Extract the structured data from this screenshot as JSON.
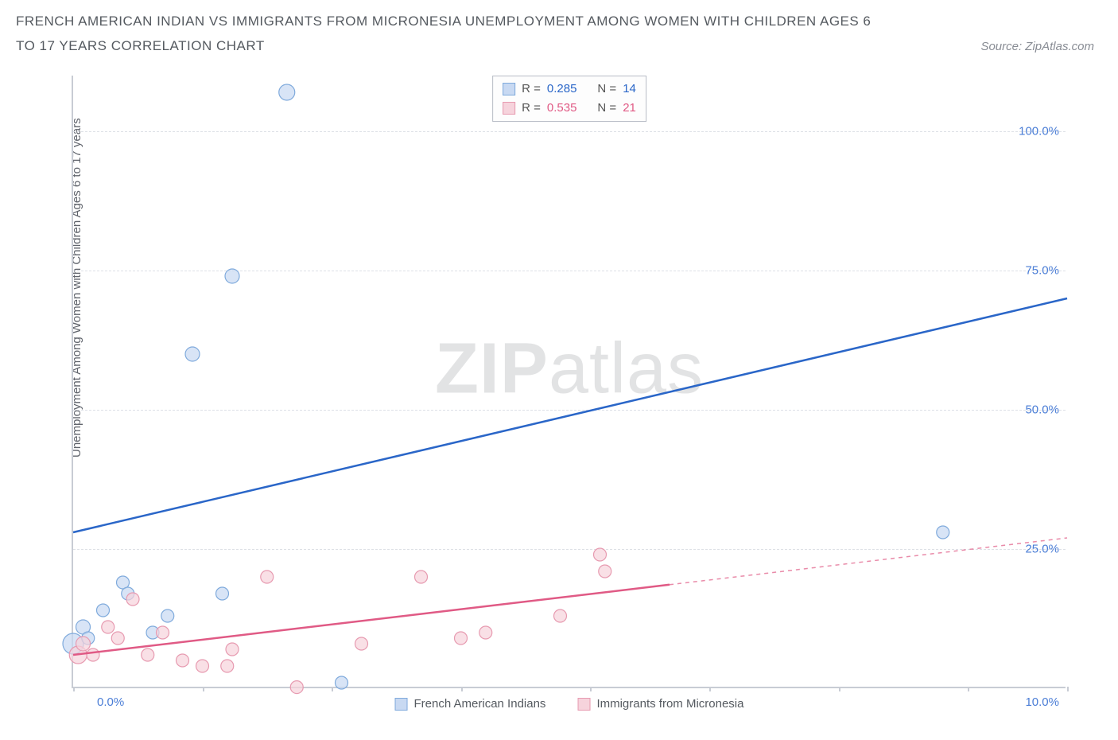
{
  "title": "FRENCH AMERICAN INDIAN VS IMMIGRANTS FROM MICRONESIA UNEMPLOYMENT AMONG WOMEN WITH CHILDREN AGES 6 TO 17 YEARS CORRELATION CHART",
  "source": "Source: ZipAtlas.com",
  "ylabel": "Unemployment Among Women with Children Ages 6 to 17 years",
  "watermark_bold": "ZIP",
  "watermark_rest": "atlas",
  "chart": {
    "type": "scatter-with-regression",
    "xlim": [
      0,
      10
    ],
    "ylim": [
      0,
      110
    ],
    "xticks_labels": {
      "min": "0.0%",
      "max": "10.0%"
    },
    "xtick_positions": [
      0,
      1.3,
      2.6,
      3.9,
      5.2,
      6.4,
      7.7,
      9.0,
      10.0
    ],
    "yticks": [
      {
        "v": 25,
        "label": "25.0%"
      },
      {
        "v": 50,
        "label": "50.0%"
      },
      {
        "v": 75,
        "label": "75.0%"
      },
      {
        "v": 100,
        "label": "100.0%"
      }
    ],
    "grid_color": "#dde0e6",
    "axis_color": "#c8ccd4",
    "background_color": "#ffffff",
    "series": [
      {
        "name": "French American Indians",
        "color_fill": "#c8d9f2",
        "color_stroke": "#7faadc",
        "color_line": "#2a66c8",
        "legend_text_color": "#2a66c8",
        "R_label": "R =",
        "R": "0.285",
        "N_label": "N =",
        "N": "14",
        "marker_opacity": 0.7,
        "marker_stroke_width": 1.2,
        "line_width": 2.5,
        "trend": {
          "x1": 0,
          "y1": 28,
          "x2": 10,
          "y2": 70,
          "solid_until_x": 10
        },
        "points": [
          {
            "x": 0.0,
            "y": 8,
            "r": 13
          },
          {
            "x": 0.1,
            "y": 11,
            "r": 9
          },
          {
            "x": 0.15,
            "y": 9,
            "r": 8
          },
          {
            "x": 0.3,
            "y": 14,
            "r": 8
          },
          {
            "x": 0.5,
            "y": 19,
            "r": 8
          },
          {
            "x": 0.55,
            "y": 17,
            "r": 8
          },
          {
            "x": 0.8,
            "y": 10,
            "r": 8
          },
          {
            "x": 0.95,
            "y": 13,
            "r": 8
          },
          {
            "x": 1.5,
            "y": 17,
            "r": 8
          },
          {
            "x": 2.7,
            "y": 1,
            "r": 8
          },
          {
            "x": 1.2,
            "y": 60,
            "r": 9
          },
          {
            "x": 1.6,
            "y": 74,
            "r": 9
          },
          {
            "x": 2.15,
            "y": 107,
            "r": 10
          },
          {
            "x": 8.75,
            "y": 28,
            "r": 8
          }
        ]
      },
      {
        "name": "Immigrants from Micronesia",
        "color_fill": "#f6d3dc",
        "color_stroke": "#e79ab0",
        "color_line": "#e05a85",
        "legend_text_color": "#e05a85",
        "R_label": "R =",
        "R": "0.535",
        "N_label": "N =",
        "N": "21",
        "marker_opacity": 0.7,
        "marker_stroke_width": 1.2,
        "line_width": 2.5,
        "trend": {
          "x1": 0,
          "y1": 6,
          "x2": 10,
          "y2": 27,
          "solid_until_x": 6.0
        },
        "points": [
          {
            "x": 0.05,
            "y": 6,
            "r": 11
          },
          {
            "x": 0.1,
            "y": 8,
            "r": 9
          },
          {
            "x": 0.2,
            "y": 6,
            "r": 8
          },
          {
            "x": 0.35,
            "y": 11,
            "r": 8
          },
          {
            "x": 0.45,
            "y": 9,
            "r": 8
          },
          {
            "x": 0.6,
            "y": 16,
            "r": 8
          },
          {
            "x": 0.75,
            "y": 6,
            "r": 8
          },
          {
            "x": 0.9,
            "y": 10,
            "r": 8
          },
          {
            "x": 1.1,
            "y": 5,
            "r": 8
          },
          {
            "x": 1.3,
            "y": 4,
            "r": 8
          },
          {
            "x": 1.55,
            "y": 4,
            "r": 8
          },
          {
            "x": 1.6,
            "y": 7,
            "r": 8
          },
          {
            "x": 1.95,
            "y": 20,
            "r": 8
          },
          {
            "x": 2.25,
            "y": 0.2,
            "r": 8
          },
          {
            "x": 2.9,
            "y": 8,
            "r": 8
          },
          {
            "x": 3.5,
            "y": 20,
            "r": 8
          },
          {
            "x": 3.9,
            "y": 9,
            "r": 8
          },
          {
            "x": 4.15,
            "y": 10,
            "r": 8
          },
          {
            "x": 4.9,
            "y": 13,
            "r": 8
          },
          {
            "x": 5.3,
            "y": 24,
            "r": 8
          },
          {
            "x": 5.35,
            "y": 21,
            "r": 8
          }
        ]
      }
    ]
  }
}
